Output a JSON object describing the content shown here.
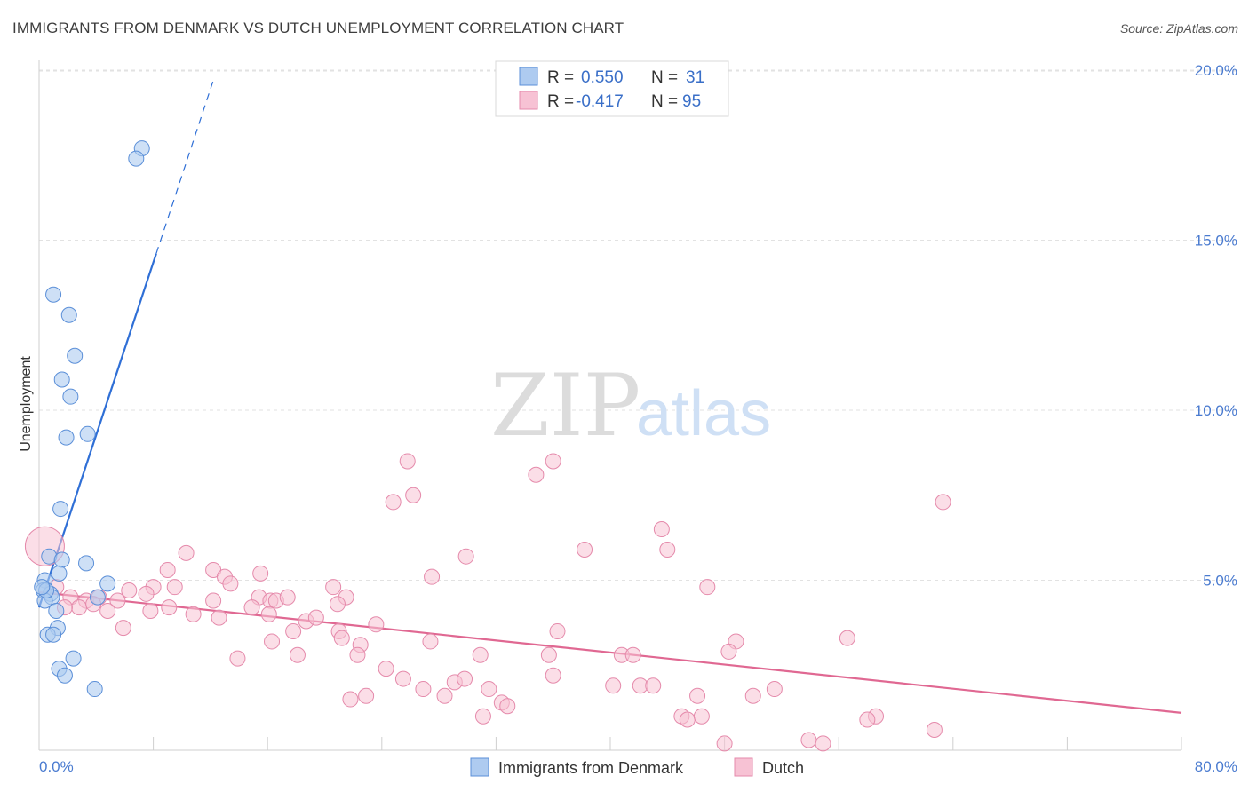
{
  "title": "IMMIGRANTS FROM DENMARK VS DUTCH UNEMPLOYMENT CORRELATION CHART",
  "source": "Source: ZipAtlas.com",
  "watermark": {
    "zip": "ZIP",
    "atlas": "atlas"
  },
  "colors": {
    "blue_fill": "#aecbf0",
    "blue_stroke": "#5b8fd8",
    "blue_line": "#2f6fd6",
    "pink_fill": "#f7c2d4",
    "pink_stroke": "#e58aab",
    "pink_line": "#e06892",
    "axis_text": "#4a7bd0",
    "grid": "#e2e2e2"
  },
  "legend": {
    "rows": [
      {
        "r_label": "R =",
        "r_value": "0.550",
        "n_label": "N =",
        "n_value": "31",
        "color": "#aecbf0"
      },
      {
        "r_label": "R =",
        "r_value": "-0.417",
        "n_label": "N =",
        "n_value": "95",
        "color": "#f7c2d4"
      }
    ]
  },
  "bottom_legend": [
    {
      "label": "Immigrants from Denmark",
      "color": "#aecbf0"
    },
    {
      "label": "Dutch",
      "color": "#f7c2d4"
    }
  ],
  "chart_data": {
    "type": "scatter",
    "title": "IMMIGRANTS FROM DENMARK VS DUTCH UNEMPLOYMENT CORRELATION CHART",
    "xlabel": "",
    "ylabel": "Unemployment",
    "xlim": [
      0,
      80
    ],
    "ylim": [
      0,
      20.5
    ],
    "x_tick_labels": [
      "0.0%",
      "80.0%"
    ],
    "y_ticks": [
      5,
      10,
      15,
      20
    ],
    "y_tick_labels": [
      "5.0%",
      "10.0%",
      "15.0%",
      "20.0%"
    ],
    "grid": true,
    "series": [
      {
        "name": "Immigrants from Denmark",
        "R": 0.55,
        "N": 31,
        "trend": {
          "x0": 0,
          "y0": 4.2,
          "x1": 8.2,
          "y1": 14.6,
          "dash_to_x": 12.2,
          "dash_to_y": 19.7
        },
        "points": [
          [
            7.2,
            17.7
          ],
          [
            6.8,
            17.4
          ],
          [
            1.0,
            13.4
          ],
          [
            2.1,
            12.8
          ],
          [
            2.5,
            11.6
          ],
          [
            1.6,
            10.9
          ],
          [
            2.2,
            10.4
          ],
          [
            1.9,
            9.2
          ],
          [
            3.4,
            9.3
          ],
          [
            1.5,
            7.1
          ],
          [
            0.7,
            5.7
          ],
          [
            1.6,
            5.6
          ],
          [
            3.3,
            5.5
          ],
          [
            1.4,
            5.2
          ],
          [
            0.4,
            5.0
          ],
          [
            4.8,
            4.9
          ],
          [
            0.3,
            4.7
          ],
          [
            0.8,
            4.6
          ],
          [
            0.9,
            4.5
          ],
          [
            4.1,
            4.5
          ],
          [
            0.4,
            4.4
          ],
          [
            1.2,
            4.1
          ],
          [
            1.3,
            3.6
          ],
          [
            0.6,
            3.4
          ],
          [
            1.0,
            3.4
          ],
          [
            2.4,
            2.7
          ],
          [
            1.4,
            2.4
          ],
          [
            1.8,
            2.2
          ],
          [
            3.9,
            1.8
          ],
          [
            0.5,
            4.7
          ],
          [
            0.2,
            4.8
          ]
        ]
      },
      {
        "name": "Dutch",
        "R": -0.417,
        "N": 95,
        "trend": {
          "x0": 0,
          "y0": 4.65,
          "x1": 80,
          "y1": 1.1
        },
        "points": [
          [
            25.8,
            8.5
          ],
          [
            36.0,
            8.5
          ],
          [
            34.8,
            8.1
          ],
          [
            26.2,
            7.5
          ],
          [
            24.8,
            7.3
          ],
          [
            63.3,
            7.3
          ],
          [
            43.6,
            6.5
          ],
          [
            44.0,
            5.9
          ],
          [
            38.2,
            5.9
          ],
          [
            29.9,
            5.7
          ],
          [
            10.3,
            5.8
          ],
          [
            12.2,
            5.3
          ],
          [
            15.5,
            5.2
          ],
          [
            9.0,
            5.3
          ],
          [
            27.5,
            5.1
          ],
          [
            13.0,
            5.1
          ],
          [
            13.4,
            4.9
          ],
          [
            20.6,
            4.8
          ],
          [
            8.0,
            4.8
          ],
          [
            6.3,
            4.7
          ],
          [
            7.5,
            4.6
          ],
          [
            1.2,
            4.8
          ],
          [
            9.5,
            4.8
          ],
          [
            46.8,
            4.8
          ],
          [
            21.5,
            4.5
          ],
          [
            15.4,
            4.5
          ],
          [
            16.2,
            4.4
          ],
          [
            2.2,
            4.5
          ],
          [
            3.3,
            4.4
          ],
          [
            4.2,
            4.5
          ],
          [
            5.5,
            4.4
          ],
          [
            12.2,
            4.4
          ],
          [
            16.6,
            4.4
          ],
          [
            17.4,
            4.5
          ],
          [
            2.8,
            4.2
          ],
          [
            3.8,
            4.3
          ],
          [
            1.8,
            4.2
          ],
          [
            7.8,
            4.1
          ],
          [
            4.8,
            4.1
          ],
          [
            9.1,
            4.2
          ],
          [
            10.8,
            4.0
          ],
          [
            20.9,
            4.3
          ],
          [
            16.1,
            4.0
          ],
          [
            12.6,
            3.9
          ],
          [
            14.9,
            4.2
          ],
          [
            23.6,
            3.7
          ],
          [
            18.7,
            3.8
          ],
          [
            21.0,
            3.5
          ],
          [
            19.4,
            3.9
          ],
          [
            17.8,
            3.5
          ],
          [
            21.2,
            3.3
          ],
          [
            36.3,
            3.5
          ],
          [
            5.9,
            3.6
          ],
          [
            16.3,
            3.2
          ],
          [
            22.5,
            3.1
          ],
          [
            27.4,
            3.2
          ],
          [
            56.6,
            3.3
          ],
          [
            48.8,
            3.2
          ],
          [
            48.3,
            2.9
          ],
          [
            13.9,
            2.7
          ],
          [
            18.1,
            2.8
          ],
          [
            22.3,
            2.8
          ],
          [
            30.9,
            2.8
          ],
          [
            35.7,
            2.8
          ],
          [
            40.8,
            2.8
          ],
          [
            41.6,
            2.8
          ],
          [
            24.3,
            2.4
          ],
          [
            36.0,
            2.2
          ],
          [
            25.5,
            2.1
          ],
          [
            29.1,
            2.0
          ],
          [
            29.8,
            2.1
          ],
          [
            26.9,
            1.8
          ],
          [
            28.4,
            1.6
          ],
          [
            31.5,
            1.8
          ],
          [
            40.2,
            1.9
          ],
          [
            42.1,
            1.9
          ],
          [
            43.0,
            1.9
          ],
          [
            50.0,
            1.6
          ],
          [
            51.5,
            1.8
          ],
          [
            46.1,
            1.6
          ],
          [
            22.9,
            1.6
          ],
          [
            21.8,
            1.5
          ],
          [
            32.4,
            1.4
          ],
          [
            32.8,
            1.3
          ],
          [
            45.0,
            1.0
          ],
          [
            45.4,
            0.9
          ],
          [
            46.4,
            1.0
          ],
          [
            31.1,
            1.0
          ],
          [
            58.6,
            1.0
          ],
          [
            58.0,
            0.9
          ],
          [
            62.7,
            0.6
          ],
          [
            48.0,
            0.2
          ],
          [
            53.9,
            0.3
          ],
          [
            54.9,
            0.2
          ],
          [
            0.4,
            6.0
          ]
        ]
      }
    ]
  }
}
